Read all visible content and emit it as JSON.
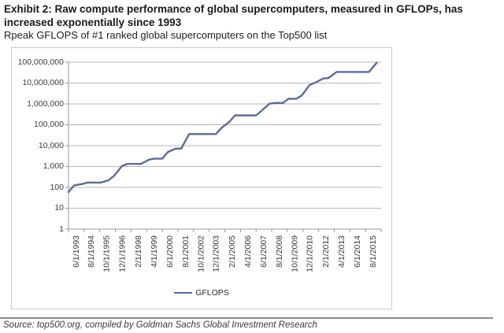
{
  "header": {
    "title": "Exhibit 2: Raw compute performance of global supercomputers, measured in GFLOPs, has increased exponentially since 1993",
    "subtitle": "Rpeak GFLOPS of #1 ranked global supercomputers on the Top500 list"
  },
  "footer": {
    "source": "Source: top500.org, compiled by Goldman Sachs Global Investment Research"
  },
  "chart_data": {
    "type": "line",
    "title": "Exhibit 2: Raw compute performance of global supercomputers, measured in GFLOPs, has increased exponentially since 1993",
    "subtitle": "Rpeak GFLOPS of #1 ranked global supercomputers on the Top500 list",
    "y_scale": "log",
    "ylim": [
      1,
      100000000
    ],
    "grid": true,
    "legend_position": "bottom",
    "y_tick_labels": [
      "100,000,000",
      "10,000,000",
      "1,000,000",
      "100,000",
      "10,000",
      "1,000",
      "100",
      "10",
      "1"
    ],
    "x_tick_labels": [
      "6/1/1993",
      "8/1/1994",
      "10/1/1995",
      "12/1/1996",
      "2/1/1998",
      "4/1/1999",
      "6/1/2000",
      "8/1/2001",
      "10/1/2002",
      "12/1/2003",
      "2/1/2005",
      "4/1/2006",
      "6/1/2007",
      "8/1/2008",
      "10/1/2009",
      "12/1/2010",
      "2/1/2012",
      "4/1/2013",
      "6/1/2014",
      "8/1/2015"
    ],
    "x_tick_interval_months": 14,
    "series": [
      {
        "name": "GFLOPS",
        "points": [
          [
            "6/1/1993",
            59.7
          ],
          [
            "11/1/1993",
            124
          ],
          [
            "6/1/1994",
            143.4
          ],
          [
            "11/1/1994",
            170
          ],
          [
            "6/1/1995",
            170
          ],
          [
            "11/1/1995",
            170
          ],
          [
            "6/1/1996",
            220.4
          ],
          [
            "11/1/1996",
            368.2
          ],
          [
            "6/1/1997",
            1068
          ],
          [
            "11/1/1997",
            1338
          ],
          [
            "6/1/1998",
            1338
          ],
          [
            "11/1/1998",
            1338
          ],
          [
            "6/1/1999",
            2121
          ],
          [
            "11/1/1999",
            2379
          ],
          [
            "6/1/2000",
            2379
          ],
          [
            "11/1/2000",
            4938
          ],
          [
            "6/1/2001",
            7226
          ],
          [
            "11/1/2001",
            7226
          ],
          [
            "6/1/2002",
            35860
          ],
          [
            "11/1/2002",
            35860
          ],
          [
            "6/1/2003",
            35860
          ],
          [
            "11/1/2003",
            35860
          ],
          [
            "6/1/2004",
            35860
          ],
          [
            "11/1/2004",
            70720
          ],
          [
            "6/1/2005",
            136800
          ],
          [
            "11/1/2005",
            280600
          ],
          [
            "6/1/2006",
            280600
          ],
          [
            "11/1/2006",
            280600
          ],
          [
            "6/1/2007",
            280600
          ],
          [
            "11/1/2007",
            478200
          ],
          [
            "6/1/2008",
            1026000
          ],
          [
            "11/1/2008",
            1105000
          ],
          [
            "6/1/2009",
            1105000
          ],
          [
            "11/1/2009",
            1759000
          ],
          [
            "6/1/2010",
            1759000
          ],
          [
            "11/1/2010",
            2566000
          ],
          [
            "6/1/2011",
            8162000
          ],
          [
            "11/1/2011",
            10510000
          ],
          [
            "6/1/2012",
            16324750
          ],
          [
            "11/1/2012",
            17590000
          ],
          [
            "6/1/2013",
            33862700
          ],
          [
            "11/1/2013",
            33862700
          ],
          [
            "6/1/2014",
            33862700
          ],
          [
            "11/1/2014",
            33862700
          ],
          [
            "6/1/2015",
            33862700
          ],
          [
            "11/1/2015",
            33862700
          ],
          [
            "6/1/2016",
            93014600
          ]
        ]
      }
    ],
    "colors": {
      "line": "#5a6c9b",
      "grid": "#b8b8b8",
      "axis": "#9a9a9a",
      "tick_text": "#3c3c3c"
    },
    "legend": [
      "GFLOPS"
    ]
  }
}
